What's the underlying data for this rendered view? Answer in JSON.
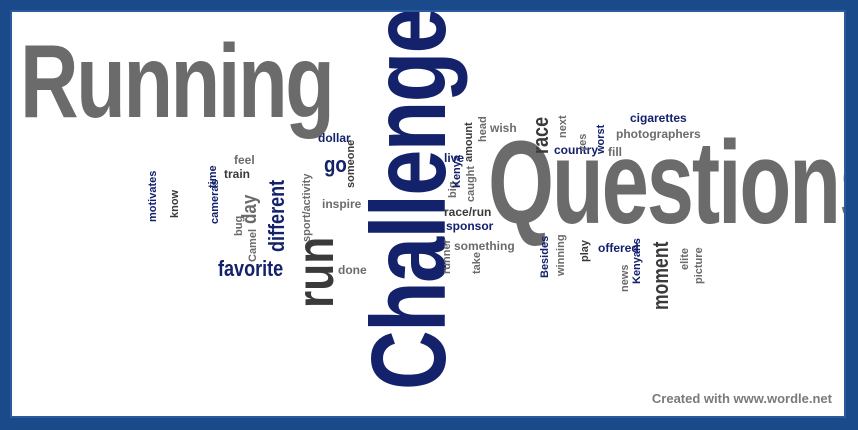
{
  "words": {
    "running": "Running",
    "challenge": "Challenge",
    "questions": "Questions",
    "run": "run",
    "favorite": "favorite",
    "different": "different",
    "go": "go",
    "race": "race",
    "day": "day",
    "moment": "moment",
    "dollar": "dollar",
    "live": "live",
    "country": "country",
    "cigarettes": "cigarettes",
    "photographers": "photographers",
    "feel": "feel",
    "train": "train",
    "time": "time",
    "cameras": "cameras",
    "motivates": "motivates",
    "know": "know",
    "bug": "bug",
    "camel": "Camel",
    "sport_activity": "sport/activity",
    "inspire": "inspire",
    "someone": "someone",
    "done": "done",
    "big": "big",
    "kenya": "Kenya",
    "caught": "caught",
    "amount": "amount",
    "head": "head",
    "wish": "wish",
    "next": "next",
    "yes": "yes",
    "worst": "worst",
    "fill": "fill",
    "race_run": "race/run",
    "sponsor": "sponsor",
    "something": "something",
    "runner": "runner",
    "take": "take",
    "besides": "Besides",
    "winning": "winning",
    "play": "play",
    "offered": "offered",
    "news": "news",
    "kenyans": "Kenyans",
    "elite": "elite",
    "picture": "picture"
  },
  "credit": "Created with www.wordle.net",
  "colors": {
    "gray": "#6b6b6b",
    "navy": "#14216b",
    "frame": "#1a4a8a"
  }
}
